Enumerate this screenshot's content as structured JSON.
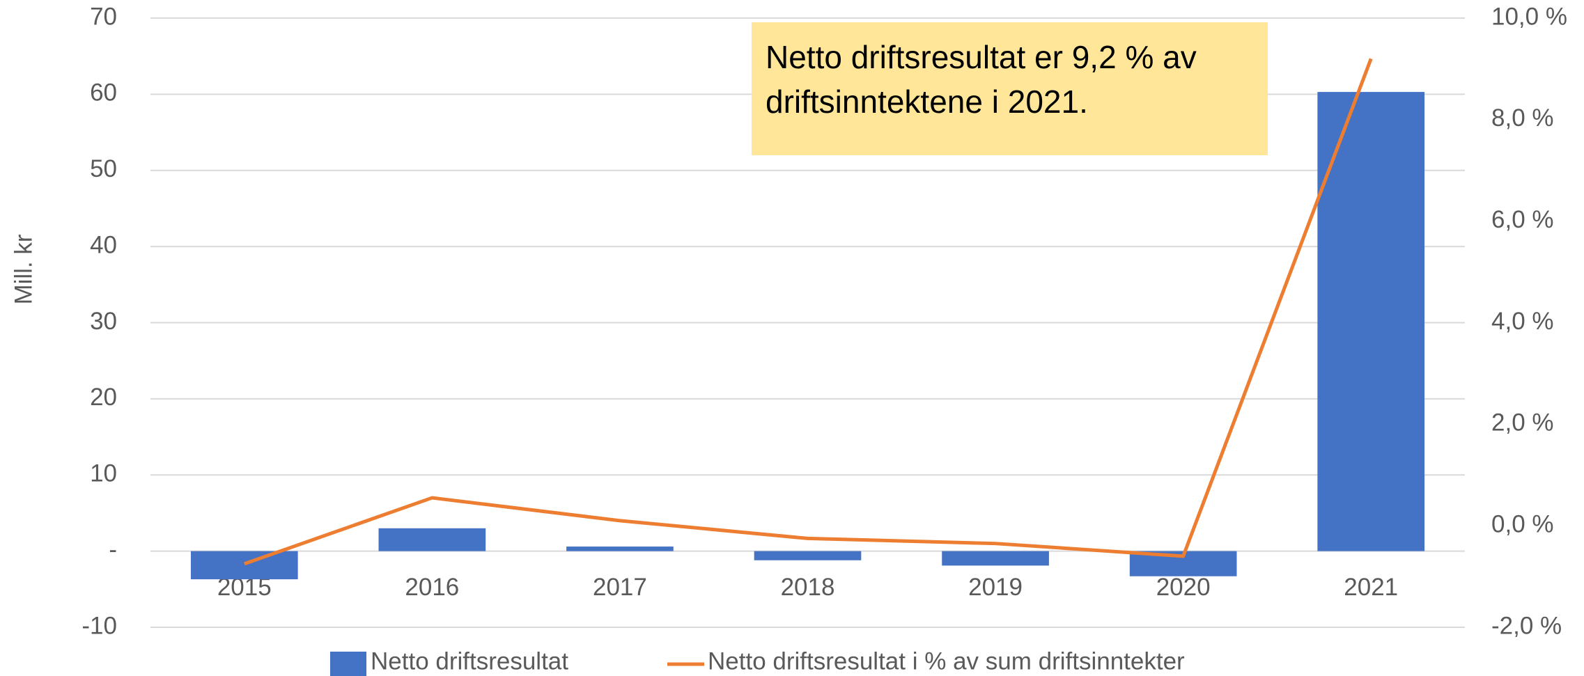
{
  "chart_data": {
    "type": "bar-line",
    "annotation": "Netto driftsresultat er 9,2 % av driftsinntektene i 2021.",
    "y_label": "Mill. kr",
    "categories": [
      "2015",
      "2016",
      "2017",
      "2018",
      "2019",
      "2020",
      "2021"
    ],
    "series": [
      {
        "name": "Netto driftsresultat",
        "type": "bar",
        "color": "#4472c4",
        "values": [
          -3.7,
          3.0,
          0.6,
          -1.2,
          -1.9,
          -3.3,
          60.3
        ]
      },
      {
        "name": "Netto driftsresultat i % av sum driftsinntekter",
        "type": "line",
        "axis": "y2",
        "color": "#ed7d31",
        "values": [
          -0.75,
          0.55,
          0.1,
          -0.25,
          -0.35,
          -0.6,
          9.2
        ]
      }
    ],
    "ylim": [
      -10,
      70
    ],
    "yticks": [
      -10,
      {
        "value": 0,
        "label": "-"
      },
      10,
      20,
      30,
      40,
      50,
      60,
      70
    ],
    "y2lim": [
      -2,
      10
    ],
    "y2ticks": [
      {
        "value": -2,
        "label": "-2,0 %"
      },
      {
        "value": 0,
        "label": "0,0 %"
      },
      {
        "value": 2,
        "label": "2,0 %"
      },
      {
        "value": 4,
        "label": "4,0 %"
      },
      {
        "value": 6,
        "label": "6,0 %"
      },
      {
        "value": 8,
        "label": "8,0 %"
      },
      {
        "value": 10,
        "label": "10,0 %"
      }
    ],
    "grid": true
  }
}
